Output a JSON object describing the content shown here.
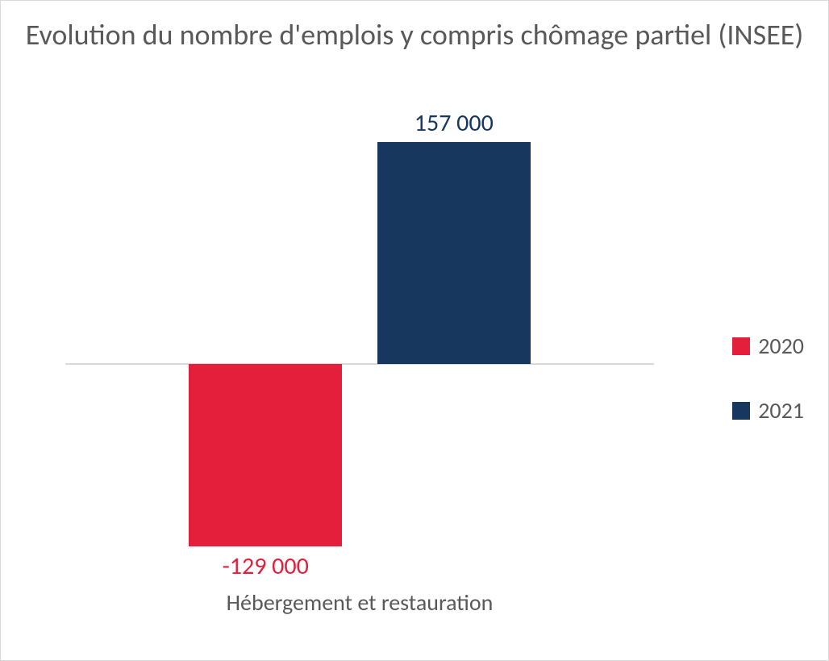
{
  "chart": {
    "type": "bar",
    "title": "Evolution du nombre d'emplois y compris chômage partiel (INSEE)",
    "title_fontsize": 36,
    "title_color": "#595959",
    "x_category_label": "Hébergement et restauration",
    "x_label_fontsize": 28,
    "x_label_color": "#595959",
    "series": [
      {
        "name": "2020",
        "value": -129000,
        "display": "-129 000",
        "color": "#e41f3c"
      },
      {
        "name": "2021",
        "value": 157000,
        "display": "157 000",
        "color": "#17375e"
      }
    ],
    "data_label_fontsize": 30,
    "ylim": [
      -160000,
      160000
    ],
    "baseline_color": "#d9d9d9",
    "baseline_width": 2,
    "bar_width_ratio": 0.47,
    "bar_gap_ratio": 0.06,
    "background_color": "#ffffff",
    "border_color": "#d9d9d9",
    "legend": {
      "fontsize": 28,
      "color": "#595959",
      "swatch_size": 22
    }
  }
}
